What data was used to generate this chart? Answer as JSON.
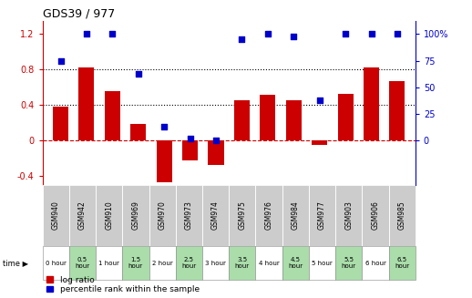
{
  "title": "GDS39 / 977",
  "samples": [
    "GSM940",
    "GSM942",
    "GSM910",
    "GSM969",
    "GSM970",
    "GSM973",
    "GSM974",
    "GSM975",
    "GSM976",
    "GSM984",
    "GSM977",
    "GSM903",
    "GSM906",
    "GSM985"
  ],
  "time_labels": [
    "0 hour",
    "0.5\nhour",
    "1 hour",
    "1.5\nhour",
    "2 hour",
    "2.5\nhour",
    "3 hour",
    "3.5\nhour",
    "4 hour",
    "4.5\nhour",
    "5 hour",
    "5.5\nhour",
    "6 hour",
    "6.5\nhour"
  ],
  "log_ratio": [
    0.38,
    0.82,
    0.56,
    0.19,
    -0.47,
    -0.22,
    -0.28,
    0.45,
    0.52,
    0.45,
    -0.05,
    0.53,
    0.82,
    0.67
  ],
  "percentile_right": [
    75,
    100,
    100,
    63,
    13,
    2,
    0,
    95,
    100,
    98,
    38,
    100,
    100,
    100
  ],
  "bar_color": "#cc0000",
  "dot_color": "#0000cc",
  "hline_color": "#cc0000",
  "dotted_line_color": "#000000",
  "yticks_left": [
    -0.4,
    0.0,
    0.4,
    0.8,
    1.2
  ],
  "yticks_right": [
    0,
    25,
    50,
    75,
    100
  ],
  "time_bg_odd": "#ffffff",
  "time_bg_even": "#aaddaa",
  "gsm_bg": "#cccccc",
  "legend_red": "log ratio",
  "legend_blue": "percentile rank within the sample"
}
